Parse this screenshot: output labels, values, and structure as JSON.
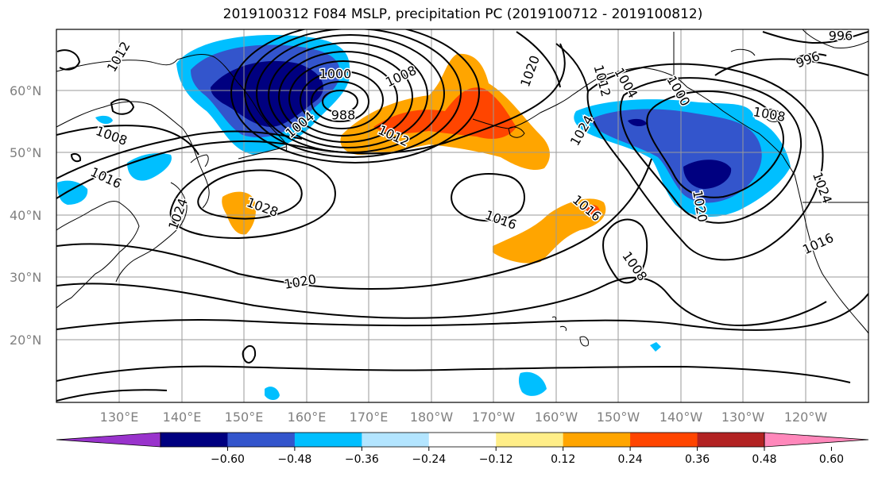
{
  "title": "2019100312 F084 MSLP, precipitation PC (2019100712 - 2019100812)",
  "lat_labels": [
    "60°N",
    "50°N",
    "40°N",
    "30°N",
    "20°N"
  ],
  "lon_labels": [
    "130°E",
    "140°E",
    "150°E",
    "160°E",
    "170°E",
    "180°W",
    "170°W",
    "160°W",
    "150°W",
    "140°W",
    "130°W",
    "120°W"
  ],
  "contour_labels": [
    {
      "text": "1012",
      "angle": 60
    },
    {
      "text": "1000",
      "angle": 0
    },
    {
      "text": "988",
      "angle": 0
    },
    {
      "text": "1008",
      "angle": 25
    },
    {
      "text": "1004",
      "angle": 40
    },
    {
      "text": "1012",
      "angle": -25
    },
    {
      "text": "1008",
      "angle": -20
    },
    {
      "text": "1016",
      "angle": -25
    },
    {
      "text": "1028",
      "angle": -20
    },
    {
      "text": "1024",
      "angle": 70
    },
    {
      "text": "1020",
      "angle": 10
    },
    {
      "text": "1016",
      "angle": -20
    },
    {
      "text": "1020",
      "angle": 70
    },
    {
      "text": "1024",
      "angle": 60
    },
    {
      "text": "1016",
      "angle": -40
    },
    {
      "text": "1008",
      "angle": -55
    },
    {
      "text": "1012",
      "angle": -75
    },
    {
      "text": "1004",
      "angle": -60
    },
    {
      "text": "1000",
      "angle": -60
    },
    {
      "text": "1008",
      "angle": -10
    },
    {
      "text": "1020",
      "angle": -80
    },
    {
      "text": "1016",
      "angle": 25
    },
    {
      "text": "1024",
      "angle": -70
    },
    {
      "text": "996",
      "angle": 0
    },
    {
      "text": "996",
      "angle": 20
    }
  ],
  "colorbar": {
    "colors": [
      "#9933cc",
      "#000080",
      "#3355cc",
      "#00bfff",
      "#b3e5ff",
      "#ffffff",
      "#ffee88",
      "#ffa500",
      "#ff4500",
      "#b22222",
      "#ff88bb"
    ],
    "ticks": [
      "−0.60",
      "−0.48",
      "−0.36",
      "−0.24",
      "−0.12",
      "0.12",
      "0.24",
      "0.36",
      "0.48",
      "0.60"
    ]
  }
}
